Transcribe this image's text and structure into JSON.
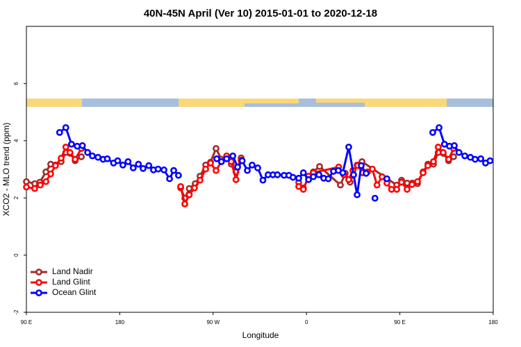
{
  "chart_data": {
    "type": "line",
    "title": "40N-45N April (Ver 10)   2015-01-01 to 2020-12-18",
    "xlabel": "Longitude",
    "ylabel": "XCO2 - MLO trend (ppm)",
    "xlim": [
      90,
      540
    ],
    "ylim": [
      -2,
      8
    ],
    "xticks": [
      {
        "value": 90,
        "label": "90 E"
      },
      180,
      {
        "value": 270,
        "label": "90 W"
      },
      {
        "value": 360,
        "label": "0"
      },
      {
        "value": 450,
        "label": "90 E"
      },
      {
        "value": 540,
        "label": "180"
      }
    ],
    "yticks": [
      -2,
      0,
      2,
      4,
      6
    ],
    "legend": "bottomleft",
    "series": [
      {
        "name": "Land Nadir",
        "color": "#a52a2a",
        "x": [
          90,
          98,
          103,
          108.8,
          113.4,
          118,
          123.5,
          128,
          132,
          137,
          143,
          null,
          238.7,
          242.7,
          247,
          252.7,
          257.4,
          262.8,
          267.5,
          272.8,
          278,
          283,
          287.5,
          292,
          297,
          null,
          352.5,
          357,
          362,
          366.6,
          372.6,
          392.7,
          397.4,
          402,
          408.8,
          413.5,
          447,
          451.6,
          457,
          462,
          467,
          472.4,
          477,
          482.4,
          487,
          491.8,
          497,
          501.8
        ],
        "values": [
          2.57,
          2.5,
          2.55,
          2.91,
          3.18,
          3.15,
          3.27,
          3.59,
          3.56,
          3.3,
          3.44,
          null,
          2.35,
          1.99,
          2.33,
          2.5,
          2.76,
          3.15,
          3.25,
          3.73,
          3.35,
          3.42,
          3.18,
          2.91,
          3.4,
          null,
          2.55,
          2.35,
          2.69,
          2.91,
          3.1,
          2.45,
          2.86,
          2.55,
          3.15,
          3.27,
          2.45,
          2.62,
          2.52,
          2.52,
          2.5,
          2.91,
          3.18,
          3.18,
          3.59,
          3.56,
          3.3,
          3.44
        ]
      },
      {
        "name": "Land Glint",
        "color": "#ff0000",
        "x": [
          90,
          98,
          103.4,
          108.8,
          113.4,
          118,
          123.5,
          128,
          132,
          137,
          143,
          null,
          238.7,
          242.7,
          247,
          252,
          257.4,
          262.8,
          267.5,
          272.8,
          278,
          283,
          287.5,
          292,
          297,
          null,
          352.5,
          357,
          362,
          366.6,
          391,
          396,
          400.7,
          404.7,
          409.4,
          414,
          418.8,
          423.5,
          428,
          432.9,
          437.6,
          442,
          447,
          451.6,
          457,
          461.7,
          467,
          472.4,
          477,
          482.4,
          487,
          491.8,
          497,
          501.8
        ],
        "values": [
          2.38,
          2.33,
          2.45,
          2.57,
          2.84,
          3.13,
          3.39,
          3.78,
          3.59,
          3.35,
          3.73,
          null,
          2.4,
          1.79,
          2.11,
          2.35,
          2.62,
          3.01,
          3.22,
          2.96,
          3.27,
          3.47,
          3.27,
          2.64,
          3.32,
          null,
          2.4,
          2.3,
          2.76,
          2.88,
          3.08,
          2.81,
          2.64,
          2.96,
          3.13,
          2.88,
          2.91,
          3.01,
          2.45,
          2.74,
          2.52,
          2.3,
          2.3,
          2.55,
          2.3,
          2.47,
          2.57,
          2.88,
          3.13,
          3.27,
          3.78,
          3.59,
          3.35,
          3.73
        ]
      },
      {
        "name": "Ocean Glint",
        "color": "#0000ff",
        "x": [
          122,
          128,
          133.5,
          139,
          144,
          149,
          153.6,
          159,
          164,
          168,
          174,
          178,
          183,
          188,
          193,
          198,
          202.5,
          208,
          212.5,
          217,
          222.6,
          228,
          232,
          236.6,
          null,
          273.5,
          278,
          283,
          289,
          293.6,
          298,
          303,
          307.6,
          313,
          318,
          323,
          327.7,
          332,
          338.4,
          343,
          347,
          352.5,
          357,
          362,
          366.6,
          372,
          376.6,
          381,
          386,
          390.7,
          395,
          400.7,
          405.4,
          408.8,
          412.8,
          417.5,
          null,
          426,
          null,
          437.5,
          null,
          481.7,
          487.8,
          493,
          497.8,
          502.5,
          507,
          512.6,
          518,
          522.6,
          528,
          532.6,
          537
        ],
        "values": [
          4.29,
          4.46,
          3.88,
          3.81,
          3.83,
          3.59,
          3.47,
          3.42,
          3.35,
          3.37,
          3.22,
          3.3,
          3.15,
          3.27,
          3.05,
          3.18,
          3.03,
          3.13,
          2.98,
          3.01,
          2.98,
          2.67,
          2.96,
          2.79,
          null,
          3.37,
          3.27,
          3.37,
          3.47,
          3.08,
          3.3,
          2.96,
          3.15,
          3.05,
          2.62,
          2.81,
          2.81,
          2.81,
          2.79,
          2.79,
          2.72,
          2.69,
          2.88,
          2.64,
          2.74,
          2.81,
          2.69,
          2.67,
          2.93,
          2.96,
          2.88,
          3.78,
          2.81,
          2.11,
          3.13,
          2.86,
          null,
          1.99,
          null,
          2.67,
          null,
          4.29,
          4.46,
          3.88,
          3.81,
          3.83,
          3.59,
          3.47,
          3.42,
          3.35,
          3.37,
          3.22,
          3.3
        ]
      }
    ]
  }
}
